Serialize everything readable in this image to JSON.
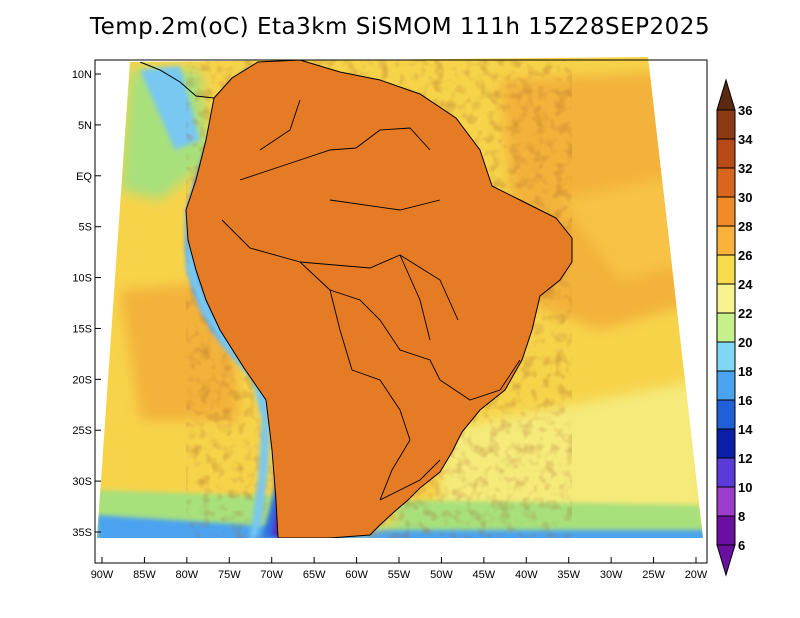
{
  "title": "Temp.2m(oC) Eta3km SiSMOM 111h 15Z28SEP2025",
  "lat_labels": [
    "10N",
    "5N",
    "EQ",
    "5S",
    "10S",
    "15S",
    "20S",
    "25S",
    "30S",
    "35S"
  ],
  "lat_values": [
    10,
    5,
    0,
    -5,
    -10,
    -15,
    -20,
    -25,
    -30,
    -35
  ],
  "lon_labels": [
    "90W",
    "85W",
    "80W",
    "75W",
    "70W",
    "65W",
    "60W",
    "55W",
    "50W",
    "45W",
    "40W",
    "35W",
    "30W",
    "25W",
    "20W"
  ],
  "lon_values": [
    -90,
    -85,
    -80,
    -75,
    -70,
    -65,
    -60,
    -55,
    -50,
    -45,
    -40,
    -35,
    -30,
    -25,
    -20
  ],
  "colorbar": {
    "labels": [
      "36",
      "34",
      "32",
      "30",
      "28",
      "26",
      "24",
      "22",
      "20",
      "18",
      "16",
      "14",
      "12",
      "10",
      "8",
      "6"
    ],
    "colors": [
      "#5a2a10",
      "#8b3a14",
      "#b84a18",
      "#d9661f",
      "#f08c28",
      "#f9b13a",
      "#f9dc4e",
      "#f8f290",
      "#c7f08a",
      "#7fd6f5",
      "#4ba3ef",
      "#1f5fd8",
      "#0a1ea8",
      "#5a3ad8",
      "#9b3ccc",
      "#6a0fa0"
    ]
  },
  "colors": {
    "ocean_warm": "#f7d34a",
    "ocean_hot": "#f3b23a",
    "ocean_mild": "#f5ea7a",
    "ocean_cool": "#a8e07c",
    "land_hot": "#c8561b",
    "land_warm": "#e57b25",
    "andes_cold": "#5b2bc0",
    "andes_cool": "#2f6fe0",
    "coast_blue": "#78c8f2"
  }
}
